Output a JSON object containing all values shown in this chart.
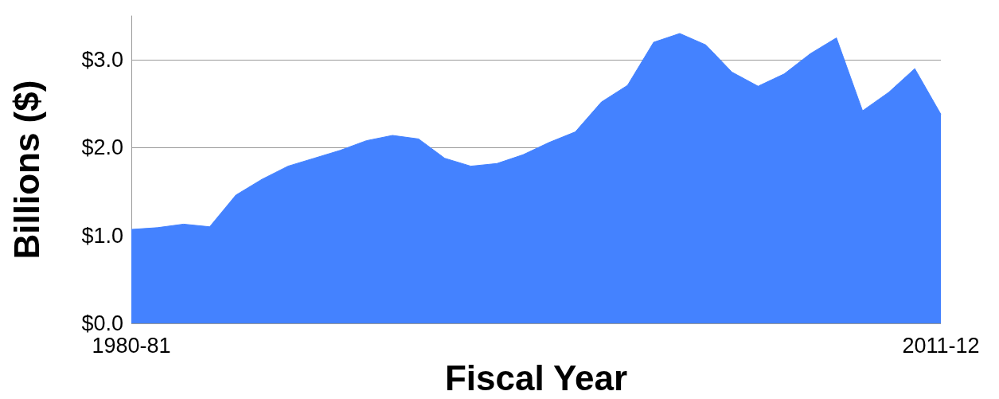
{
  "chart_data": {
    "type": "area",
    "xlabel": "Fiscal Year",
    "ylabel": "Billions ($)",
    "categories": [
      "1980-81",
      null,
      null,
      null,
      null,
      null,
      null,
      null,
      null,
      null,
      null,
      null,
      null,
      null,
      null,
      null,
      null,
      null,
      null,
      null,
      null,
      null,
      null,
      null,
      null,
      null,
      null,
      null,
      null,
      null,
      null,
      "2011-12"
    ],
    "series": [
      {
        "color": "#4482ff",
        "values": [
          1.07,
          1.09,
          1.13,
          1.1,
          1.46,
          1.64,
          1.79,
          1.88,
          1.97,
          2.08,
          2.14,
          2.1,
          1.88,
          1.79,
          1.82,
          1.92,
          2.06,
          2.18,
          2.52,
          2.71,
          3.2,
          3.3,
          3.17,
          2.86,
          2.7,
          2.84,
          3.07,
          3.25,
          2.42,
          2.63,
          2.9,
          2.38
        ]
      }
    ],
    "ylim": [
      0,
      3.5
    ],
    "yticks": [
      {
        "value": 0,
        "label": "$0.0"
      },
      {
        "value": 1,
        "label": "$1.0"
      },
      {
        "value": 2,
        "label": "$2.0"
      },
      {
        "value": 3,
        "label": "$3.0"
      }
    ],
    "grid": "y"
  }
}
